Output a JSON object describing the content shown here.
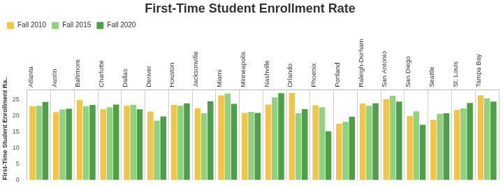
{
  "chart_data": {
    "type": "bar",
    "title": "First-Time Student Enrollment Rate",
    "y_label": "First-Time Student Enrollment Ra..",
    "categories": [
      "Atlanta",
      "Austin",
      "Baltimore",
      "Charlotte",
      "Dallas",
      "Denver",
      "Houston",
      "Jacksonville",
      "Miami",
      "Minneapolis",
      "Nashville",
      "Orlando",
      "Phoenix",
      "Portland",
      "Raleigh-Durham",
      "San Antonio",
      "San Diego",
      "Seattle",
      "St. Louis",
      "Tampa Bay"
    ],
    "series": [
      {
        "name": "Fall 2010",
        "color": "#f2c447",
        "values": [
          23.0,
          21.1,
          24.9,
          22.0,
          23.1,
          21.3,
          23.4,
          22.3,
          26.3,
          20.9,
          23.5,
          27.1,
          23.3,
          17.5,
          23.8,
          25.1,
          19.9,
          18.7,
          21.8,
          26.4
        ]
      },
      {
        "name": "Fall 2015",
        "color": "#8fd27f",
        "values": [
          23.1,
          21.9,
          23.0,
          22.6,
          23.4,
          18.5,
          23.1,
          20.8,
          26.9,
          21.2,
          25.7,
          20.8,
          22.6,
          18.1,
          23.1,
          26.2,
          21.4,
          20.6,
          22.3,
          25.4
        ]
      },
      {
        "name": "Fall 2020",
        "color": "#4f9e4a",
        "values": [
          24.3,
          22.2,
          23.4,
          23.5,
          22.0,
          19.8,
          23.9,
          24.5,
          23.7,
          20.9,
          27.0,
          22.1,
          15.2,
          19.7,
          23.9,
          24.4,
          17.2,
          20.8,
          24.0,
          24.4
        ]
      }
    ],
    "ylim": [
      0,
      28
    ],
    "yticks": [
      0,
      5,
      10,
      15,
      20,
      25
    ],
    "legend": "top-left"
  }
}
